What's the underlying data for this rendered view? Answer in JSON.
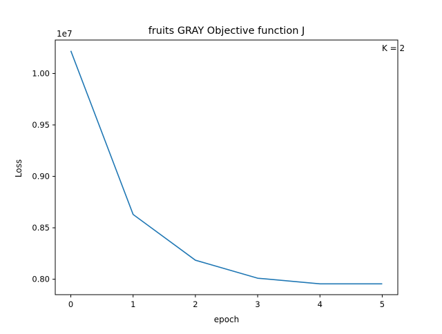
{
  "chart_data": {
    "type": "line",
    "title": "fruits GRAY Objective function J",
    "xlabel": "epoch",
    "ylabel": "Loss",
    "y_offset_label": "1e7",
    "annotation": "K = 2",
    "x": [
      0,
      1,
      2,
      3,
      4,
      5
    ],
    "series": [
      {
        "values": [
          10220000,
          8630000,
          8185000,
          8010000,
          7955000,
          7955000
        ],
        "color": "#1f77b4"
      }
    ],
    "xlim": [
      -0.25,
      5.25
    ],
    "ylim": [
      7850000,
      10325000
    ],
    "x_ticks": [
      0,
      1,
      2,
      3,
      4,
      5
    ],
    "x_tick_labels": [
      "0",
      "1",
      "2",
      "3",
      "4",
      "5"
    ],
    "y_ticks": [
      8000000,
      8500000,
      9000000,
      9500000,
      10000000
    ],
    "y_tick_labels": [
      "0.80",
      "0.85",
      "0.90",
      "0.95",
      "1.00"
    ],
    "grid": false
  }
}
